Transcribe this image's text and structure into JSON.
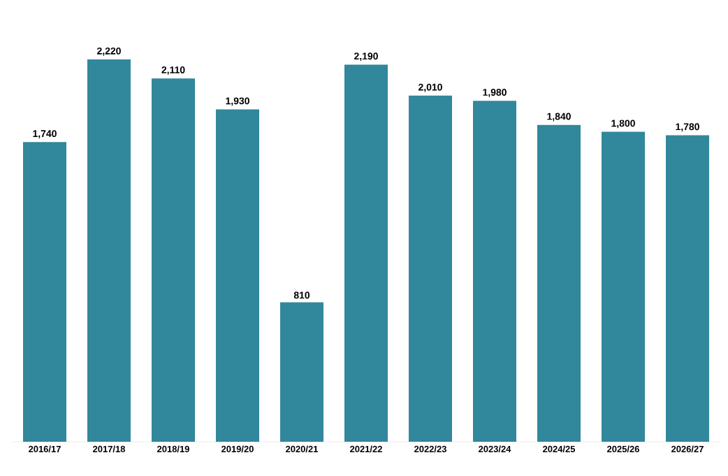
{
  "chart_data": {
    "type": "bar",
    "categories": [
      "2016/17",
      "2017/18",
      "2018/19",
      "2019/20",
      "2020/21",
      "2021/22",
      "2022/23",
      "2023/24",
      "2024/25",
      "2025/26",
      "2026/27"
    ],
    "values": [
      1740,
      2220,
      2110,
      1930,
      810,
      2190,
      2010,
      1980,
      1840,
      1800,
      1780
    ],
    "value_labels": [
      "1,740",
      "2,220",
      "2,110",
      "1,930",
      "810",
      "2,190",
      "2,010",
      "1,980",
      "1,840",
      "1,800",
      "1,780"
    ],
    "color": "#31879c",
    "grid": false
  }
}
